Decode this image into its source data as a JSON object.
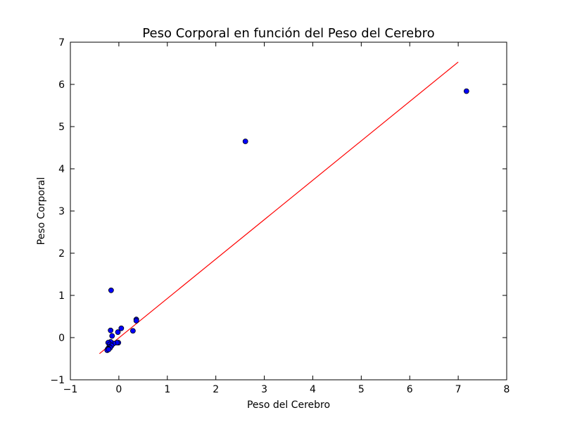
{
  "chart_data": {
    "type": "scatter",
    "title": "Peso Corporal en función del Peso del Cerebro",
    "xlabel": "Peso del Cerebro",
    "ylabel": "Peso Corporal",
    "xlim": [
      -1,
      8
    ],
    "ylim": [
      -1,
      7
    ],
    "xticks": [
      -1,
      0,
      1,
      2,
      3,
      4,
      5,
      6,
      7,
      8
    ],
    "yticks": [
      -1,
      0,
      1,
      2,
      3,
      4,
      5,
      6,
      7
    ],
    "xtick_labels": [
      "−1",
      "0",
      "1",
      "2",
      "3",
      "4",
      "5",
      "6",
      "7",
      "8"
    ],
    "ytick_labels": [
      "−1",
      "0",
      "1",
      "2",
      "3",
      "4",
      "5",
      "6",
      "7"
    ],
    "grid": false,
    "series": [
      {
        "type": "scatter",
        "color": "#0000ff",
        "points": [
          [
            7.17,
            5.84
          ],
          [
            2.61,
            4.65
          ],
          [
            -0.16,
            1.12
          ],
          [
            0.36,
            0.43
          ],
          [
            0.36,
            0.4
          ],
          [
            0.05,
            0.22
          ],
          [
            0.29,
            0.16
          ],
          [
            -0.17,
            0.17
          ],
          [
            -0.02,
            0.13
          ],
          [
            -0.14,
            0.04
          ],
          [
            -0.01,
            -0.12
          ],
          [
            -0.04,
            -0.12
          ],
          [
            -0.11,
            -0.14
          ],
          [
            -0.17,
            -0.1
          ],
          [
            -0.22,
            -0.12
          ],
          [
            -0.19,
            -0.16
          ],
          [
            -0.15,
            -0.19
          ],
          [
            -0.2,
            -0.22
          ],
          [
            -0.18,
            -0.24
          ],
          [
            -0.22,
            -0.26
          ],
          [
            -0.23,
            -0.27
          ],
          [
            -0.24,
            -0.3
          ],
          [
            -0.21,
            -0.28
          ]
        ]
      },
      {
        "type": "line",
        "color": "#ff0000",
        "x": [
          -0.4,
          7.0
        ],
        "y": [
          -0.38,
          6.53
        ]
      }
    ]
  }
}
